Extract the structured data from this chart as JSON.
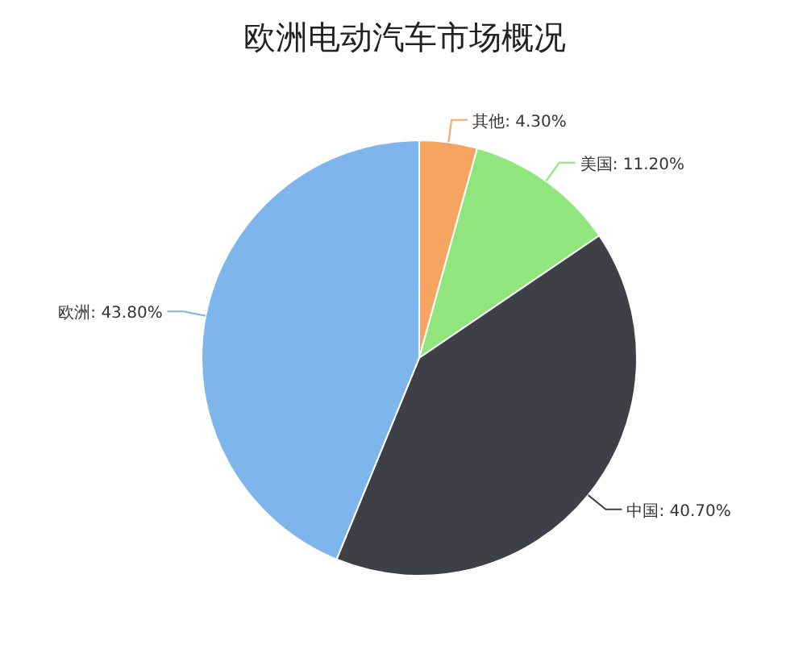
{
  "chart_data": {
    "type": "pie",
    "title": "欧洲电动汽车市场概况",
    "categories": [
      "其他",
      "美国",
      "中国",
      "欧洲"
    ],
    "values": [
      4.3,
      11.2,
      40.7,
      43.8
    ],
    "colors": [
      "#f5a55f",
      "#90e57c",
      "#3e3f47",
      "#7eb5ea"
    ],
    "value_labels": [
      "4.30%",
      "11.20%",
      "40.70%",
      "43.80%"
    ],
    "legend": false
  }
}
